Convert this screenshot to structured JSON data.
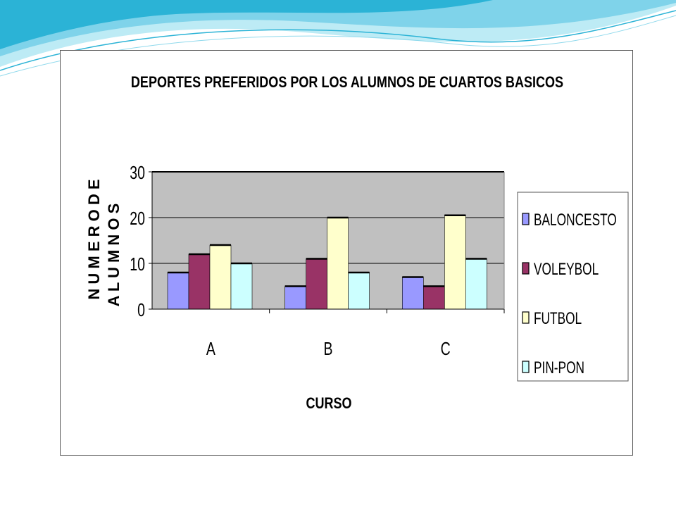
{
  "colors": {
    "plot_background": "#c0c0c0",
    "wave_dark": "#2bb3d6",
    "wave_light": "#bdebf5"
  },
  "chart_data": {
    "type": "bar",
    "title": "DEPORTES PREFERIDOS POR LOS ALUMNOS DE CUARTOS BASICOS",
    "xlabel": "CURSO",
    "ylabel_line1": "N U M E R O  D E",
    "ylabel_line2": "A L U M N O S",
    "categories": [
      "A",
      "B",
      "C"
    ],
    "ylim": [
      0,
      30
    ],
    "yticks": [
      "0",
      "10",
      "20",
      "30"
    ],
    "grid": true,
    "legend_position": "right",
    "series": [
      {
        "name": "BALONCESTO",
        "color": "#9999ff",
        "values": [
          8,
          5,
          7
        ]
      },
      {
        "name": "VOLEYBOL",
        "color": "#993366",
        "values": [
          12,
          11,
          5
        ]
      },
      {
        "name": "FUTBOL",
        "color": "#ffffcc",
        "values": [
          14,
          20,
          20.5
        ]
      },
      {
        "name": "PIN-PON",
        "color": "#ccffff",
        "values": [
          10,
          8,
          11
        ]
      }
    ]
  }
}
